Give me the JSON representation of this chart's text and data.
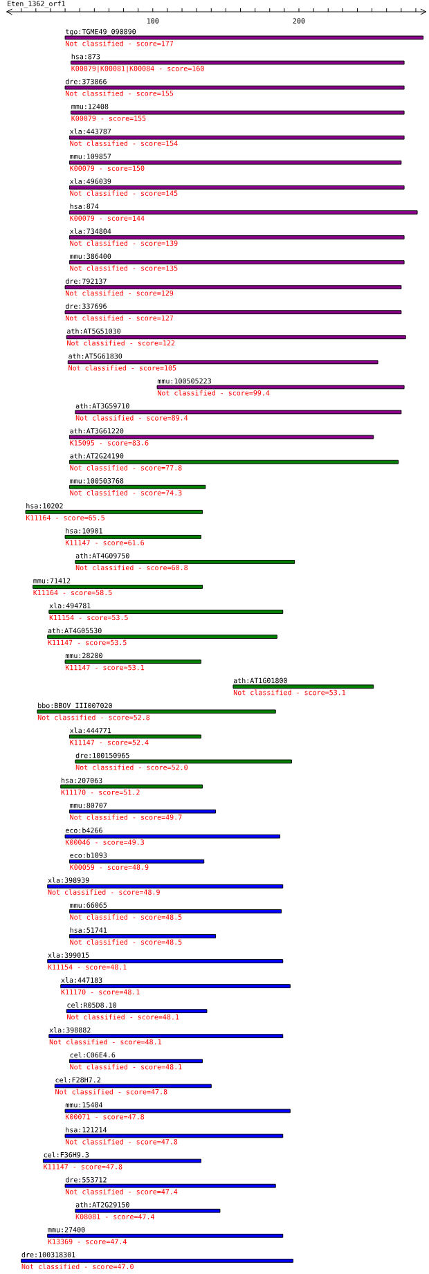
{
  "chart_data": {
    "type": "bar",
    "orientation": "horizontal",
    "title": "Eten_1362_orf1",
    "categories": [
      "tgo:TGME49_090890",
      "hsa:873",
      "dre:373866",
      "mmu:12408",
      "xla:443787",
      "mmu:109857",
      "xla:496039",
      "hsa:874",
      "xla:734804",
      "mmu:386400",
      "dre:792137",
      "dre:337696",
      "ath:AT5G51030",
      "ath:AT5G61830",
      "mmu:100505223",
      "ath:AT3G59710",
      "ath:AT3G61220",
      "ath:AT2G24190",
      "mmu:100503768",
      "hsa:10202",
      "hsa:10901",
      "ath:AT4G09750",
      "mmu:71412",
      "xla:494781",
      "ath:AT4G05530",
      "mmu:28200",
      "ath:AT1G01800",
      "bbo:BBOV_III007020",
      "xla:444771",
      "dre:100150965",
      "hsa:207063",
      "mmu:80707",
      "eco:b4266",
      "eco:b1093",
      "xla:398939",
      "mmu:66065",
      "hsa:51741",
      "xla:399015",
      "xla:447183",
      "cel:R05D8.10",
      "xla:398882",
      "cel:C06E4.6",
      "cel:F28H7.2",
      "mmu:15484",
      "hsa:121214",
      "cel:F36H9.3",
      "dre:553712",
      "ath:AT2G29150",
      "mmu:27400",
      "dre:100318301"
    ],
    "base": [
      40,
      44,
      40,
      44,
      43,
      43,
      43,
      43,
      43,
      43,
      40,
      40,
      41,
      42,
      103,
      47,
      43,
      43,
      43,
      13,
      40,
      47,
      18,
      29,
      28,
      40,
      155,
      21,
      43,
      47,
      37,
      43,
      40,
      43,
      28,
      43,
      43,
      28,
      37,
      41,
      29,
      43,
      33,
      40,
      40,
      25,
      40,
      47,
      28,
      10
    ],
    "values": [
      245,
      228,
      232,
      228,
      229,
      227,
      229,
      238,
      229,
      229,
      230,
      230,
      232,
      212,
      169,
      223,
      208,
      225,
      93,
      121,
      93,
      150,
      116,
      160,
      157,
      93,
      96,
      163,
      90,
      148,
      97,
      100,
      147,
      92,
      161,
      145,
      100,
      161,
      157,
      96,
      160,
      91,
      107,
      154,
      149,
      108,
      144,
      99,
      161,
      186
    ],
    "colors": [
      "#8b008b",
      "#8b008b",
      "#8b008b",
      "#8b008b",
      "#8b008b",
      "#8b008b",
      "#8b008b",
      "#8b008b",
      "#8b008b",
      "#8b008b",
      "#8b008b",
      "#8b008b",
      "#8b008b",
      "#8b008b",
      "#8b008b",
      "#8b008b",
      "#8b008b",
      "#008000",
      "#008000",
      "#008000",
      "#008000",
      "#008000",
      "#008000",
      "#008000",
      "#008000",
      "#008000",
      "#008000",
      "#008000",
      "#008000",
      "#008000",
      "#008000",
      "#0000ff",
      "#0000ff",
      "#0000ff",
      "#0000ff",
      "#0000ff",
      "#0000ff",
      "#0000ff",
      "#0000ff",
      "#0000ff",
      "#0000ff",
      "#0000ff",
      "#0000ff",
      "#0000ff",
      "#0000ff",
      "#0000ff",
      "#0000ff",
      "#0000ff",
      "#0000ff",
      "#0000ff"
    ],
    "xlim": [
      0,
      287
    ],
    "xticks": [
      {
        "value": 10,
        "label": null
      },
      {
        "value": 20,
        "label": null
      },
      {
        "value": 30,
        "label": null
      },
      {
        "value": 40,
        "label": null
      },
      {
        "value": 50,
        "label": null
      },
      {
        "value": 60,
        "label": null
      },
      {
        "value": 70,
        "label": null
      },
      {
        "value": 80,
        "label": null
      },
      {
        "value": 90,
        "label": null
      },
      100,
      {
        "value": 110,
        "label": null
      },
      {
        "value": 120,
        "label": null
      },
      {
        "value": 130,
        "label": null
      },
      {
        "value": 140,
        "label": null
      },
      {
        "value": 150,
        "label": null
      },
      {
        "value": 160,
        "label": null
      },
      {
        "value": 170,
        "label": null
      },
      {
        "value": 180,
        "label": null
      },
      {
        "value": 190,
        "label": null
      },
      200,
      {
        "value": 210,
        "label": null
      },
      {
        "value": 220,
        "label": null
      },
      {
        "value": 230,
        "label": null
      },
      {
        "value": 240,
        "label": null
      },
      {
        "value": 250,
        "label": null
      },
      {
        "value": 260,
        "label": null
      },
      {
        "value": 270,
        "label": null
      },
      {
        "value": 280,
        "label": null
      }
    ],
    "tick_labels": "x",
    "annotations": [
      "Not classified - score=177",
      "K00079|K00081|K00084 - score=160",
      "Not classified - score=155",
      "K00079 - score=155",
      "Not classified - score=154",
      "K00079 - score=150",
      "Not classified - score=145",
      "K00079 - score=144",
      "Not classified - score=139",
      "Not classified - score=135",
      "Not classified - score=129",
      "Not classified - score=127",
      "Not classified - score=122",
      "Not classified - score=105",
      "Not classified - score=99.4",
      "Not classified - score=89.4",
      "K15095 - score=83.6",
      "Not classified - score=77.8",
      "Not classified - score=74.3",
      "K11164 - score=65.5",
      "K11147 - score=61.6",
      "Not classified - score=60.8",
      "K11164 - score=58.5",
      "K11154 - score=53.5",
      "K11147 - score=53.5",
      "K11147 - score=53.1",
      "Not classified - score=53.1",
      "Not classified - score=52.8",
      "K11147 - score=52.4",
      "Not classified - score=52.0",
      "K11170 - score=51.2",
      "Not classified - score=49.7",
      "K00046 - score=49.3",
      "K00059 - score=48.9",
      "Not classified - score=48.9",
      "Not classified - score=48.5",
      "Not classified - score=48.5",
      "K11154 - score=48.1",
      "K11170 - score=48.1",
      "Not classified - score=48.1",
      "Not classified - score=48.1",
      "Not classified - score=48.1",
      "Not classified - score=47.8",
      "K00071 - score=47.8",
      "Not classified - score=47.8",
      "K11147 - score=47.8",
      "Not classified - score=47.4",
      "K08081 - score=47.4",
      "K13369 - score=47.4",
      "Not classified - score=47.0"
    ]
  }
}
